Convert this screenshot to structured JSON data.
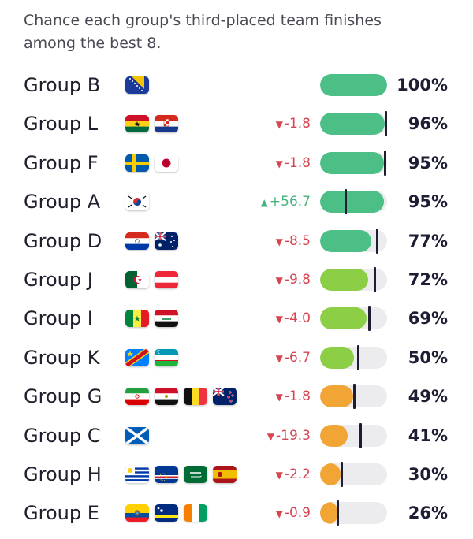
{
  "header": {
    "title_line1": "Chance each group's third-placed team finishes",
    "title_line2": "among the best 8."
  },
  "colors": {
    "high": "#4cbf87",
    "mid": "#8dce47",
    "low": "#f0a535",
    "track": "#ececee",
    "marker": "#1d1d33",
    "down": "#d64550",
    "up": "#45b37c"
  },
  "chart_data": {
    "type": "table",
    "title": "Chance each group's third-placed team finishes among the best 8.",
    "columns": [
      "group",
      "flags",
      "change",
      "probability"
    ],
    "rows": [
      {
        "group": "Group B",
        "flags": [
          "bosnia-herzegovina"
        ],
        "change": "",
        "direction": "",
        "value": 100,
        "previous": 100,
        "label": "100%",
        "color": "high"
      },
      {
        "group": "Group L",
        "flags": [
          "ghana",
          "croatia"
        ],
        "change": "-1.8",
        "direction": "down",
        "value": 96,
        "previous": 97.8,
        "label": "96%",
        "color": "high"
      },
      {
        "group": "Group F",
        "flags": [
          "sweden",
          "japan"
        ],
        "change": "-1.8",
        "direction": "down",
        "value": 95,
        "previous": 96.8,
        "label": "95%",
        "color": "high"
      },
      {
        "group": "Group A",
        "flags": [
          "south-korea"
        ],
        "change": "+56.7",
        "direction": "up",
        "value": 95,
        "previous": 38.3,
        "label": "95%",
        "color": "high"
      },
      {
        "group": "Group D",
        "flags": [
          "paraguay",
          "australia"
        ],
        "change": "-8.5",
        "direction": "down",
        "value": 77,
        "previous": 85.5,
        "label": "77%",
        "color": "high"
      },
      {
        "group": "Group J",
        "flags": [
          "algeria",
          "austria"
        ],
        "change": "-9.8",
        "direction": "down",
        "value": 72,
        "previous": 81.8,
        "label": "72%",
        "color": "mid"
      },
      {
        "group": "Group I",
        "flags": [
          "senegal",
          "iraq"
        ],
        "change": "-4.0",
        "direction": "down",
        "value": 69,
        "previous": 73,
        "label": "69%",
        "color": "mid"
      },
      {
        "group": "Group K",
        "flags": [
          "dr-congo",
          "uzbekistan"
        ],
        "change": "-6.7",
        "direction": "down",
        "value": 50,
        "previous": 56.7,
        "label": "50%",
        "color": "mid"
      },
      {
        "group": "Group G",
        "flags": [
          "iran",
          "egypt",
          "belgium",
          "new-zealand"
        ],
        "change": "-1.8",
        "direction": "down",
        "value": 49,
        "previous": 50.8,
        "label": "49%",
        "color": "low"
      },
      {
        "group": "Group C",
        "flags": [
          "scotland"
        ],
        "change": "-19.3",
        "direction": "down",
        "value": 41,
        "previous": 60.3,
        "label": "41%",
        "color": "low"
      },
      {
        "group": "Group H",
        "flags": [
          "uruguay",
          "cape-verde",
          "saudi-arabia",
          "spain"
        ],
        "change": "-2.2",
        "direction": "down",
        "value": 30,
        "previous": 32.2,
        "label": "30%",
        "color": "low"
      },
      {
        "group": "Group E",
        "flags": [
          "ecuador",
          "curacao",
          "ivory-coast"
        ],
        "change": "-0.9",
        "direction": "down",
        "value": 26,
        "previous": 26.9,
        "label": "26%",
        "color": "low"
      }
    ]
  }
}
